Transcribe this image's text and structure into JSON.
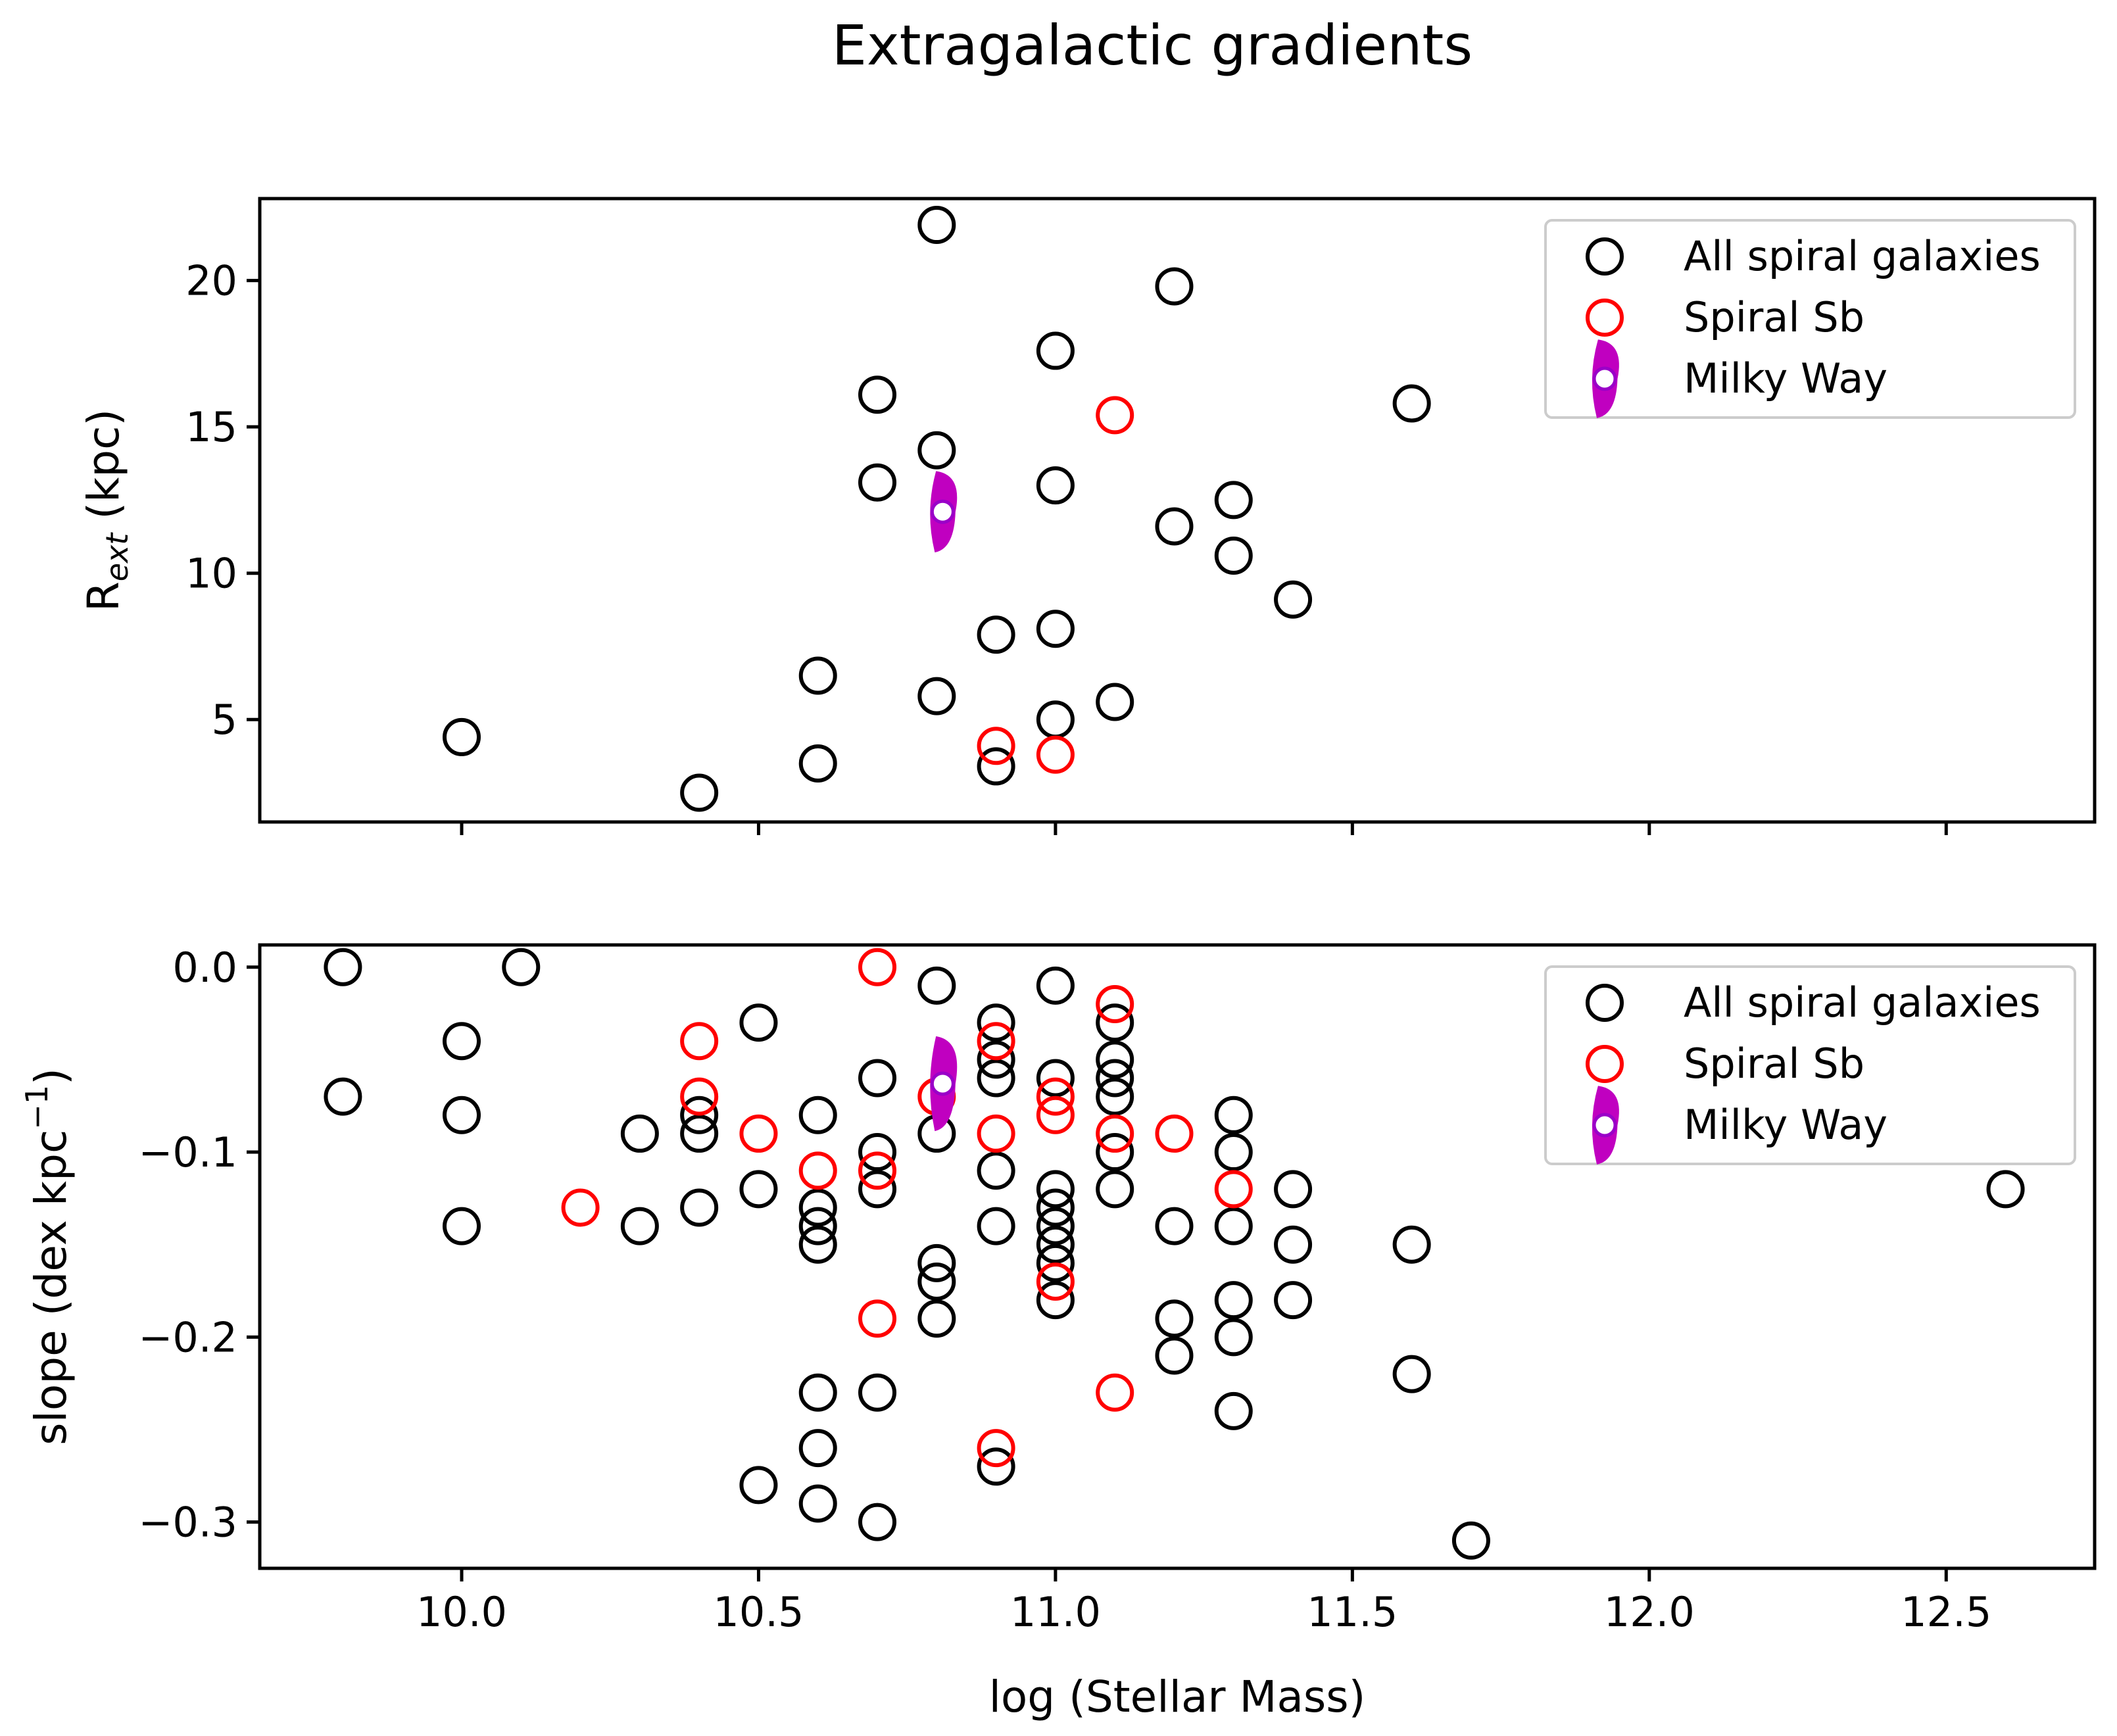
{
  "title": "Extragalactic gradients",
  "colors": {
    "all": "#000000",
    "sb": "#ff0000",
    "mw_fill": "#c000c0",
    "mw_edge": "#9a00c8"
  },
  "chart_data": [
    {
      "type": "scatter",
      "panel": "top",
      "xlabel": "log (Stellar Mass)",
      "ylabel_main": "R",
      "ylabel_sub": "ext",
      "ylabel_unit": " (kpc)",
      "xlim": [
        9.66,
        12.75
      ],
      "ylim": [
        1.5,
        22.8
      ],
      "xticks": [
        10.0,
        10.5,
        11.0,
        11.5,
        12.0,
        12.5
      ],
      "yticks": [
        5,
        10,
        15,
        20
      ],
      "ytick_labels": [
        "5",
        "10",
        "15",
        "20"
      ],
      "show_xtick_labels": false,
      "legend_position": "top-right",
      "legend": [
        "All spiral galaxies",
        "Spiral Sb",
        "Milky Way"
      ],
      "series": [
        {
          "name": "All spiral galaxies",
          "points": [
            [
              10.0,
              4.4
            ],
            [
              10.4,
              2.5
            ],
            [
              10.6,
              6.5
            ],
            [
              10.6,
              3.5
            ],
            [
              10.7,
              16.1
            ],
            [
              10.7,
              13.1
            ],
            [
              10.8,
              21.9
            ],
            [
              10.8,
              14.2
            ],
            [
              10.8,
              5.8
            ],
            [
              10.9,
              7.9
            ],
            [
              10.9,
              3.4
            ],
            [
              11.0,
              17.6
            ],
            [
              11.0,
              13.0
            ],
            [
              11.0,
              8.1
            ],
            [
              11.0,
              5.0
            ],
            [
              11.1,
              5.6
            ],
            [
              11.2,
              19.8
            ],
            [
              11.2,
              11.6
            ],
            [
              11.3,
              12.5
            ],
            [
              11.3,
              10.6
            ],
            [
              11.4,
              9.1
            ],
            [
              11.6,
              15.8
            ]
          ]
        },
        {
          "name": "Spiral Sb",
          "points": [
            [
              10.9,
              4.1
            ],
            [
              11.0,
              3.8
            ],
            [
              11.1,
              15.4
            ]
          ]
        },
        {
          "name": "Milky Way",
          "points": [
            [
              10.81,
              12.1
            ]
          ],
          "y_range": [
            [
              10.9,
              13.6
            ]
          ]
        }
      ]
    },
    {
      "type": "scatter",
      "panel": "bottom",
      "xlabel": "log (Stellar Mass)",
      "ylabel_main": "slope (dex kpc",
      "ylabel_sup": "−1",
      "ylabel_end": ")",
      "xlim": [
        9.66,
        12.75
      ],
      "ylim": [
        -0.325,
        0.012
      ],
      "xticks": [
        10.0,
        10.5,
        11.0,
        11.5,
        12.0,
        12.5
      ],
      "xtick_labels": [
        "10.0",
        "10.5",
        "11.0",
        "11.5",
        "12.0",
        "12.5"
      ],
      "yticks": [
        0.0,
        -0.1,
        -0.2,
        -0.3
      ],
      "ytick_labels": [
        "0.0",
        "−0.1",
        "−0.2",
        "−0.3"
      ],
      "show_xtick_labels": true,
      "legend_position": "top-right",
      "legend": [
        "All spiral galaxies",
        "Spiral Sb",
        "Milky Way"
      ],
      "series": [
        {
          "name": "All spiral galaxies",
          "points": [
            [
              9.8,
              0.0
            ],
            [
              9.8,
              -0.07
            ],
            [
              10.0,
              -0.04
            ],
            [
              10.0,
              -0.08
            ],
            [
              10.0,
              -0.14
            ],
            [
              10.1,
              0.0
            ],
            [
              10.3,
              -0.09
            ],
            [
              10.3,
              -0.14
            ],
            [
              10.4,
              -0.08
            ],
            [
              10.4,
              -0.09
            ],
            [
              10.4,
              -0.13
            ],
            [
              10.5,
              -0.03
            ],
            [
              10.5,
              -0.12
            ],
            [
              10.5,
              -0.28
            ],
            [
              10.6,
              -0.08
            ],
            [
              10.6,
              -0.13
            ],
            [
              10.6,
              -0.14
            ],
            [
              10.6,
              -0.15
            ],
            [
              10.6,
              -0.23
            ],
            [
              10.6,
              -0.26
            ],
            [
              10.6,
              -0.29
            ],
            [
              10.7,
              -0.06
            ],
            [
              10.7,
              -0.1
            ],
            [
              10.7,
              -0.12
            ],
            [
              10.7,
              -0.23
            ],
            [
              10.7,
              -0.3
            ],
            [
              10.8,
              -0.01
            ],
            [
              10.8,
              -0.09
            ],
            [
              10.8,
              -0.16
            ],
            [
              10.8,
              -0.17
            ],
            [
              10.8,
              -0.19
            ],
            [
              10.9,
              -0.03
            ],
            [
              10.9,
              -0.05
            ],
            [
              10.9,
              -0.06
            ],
            [
              10.9,
              -0.11
            ],
            [
              10.9,
              -0.14
            ],
            [
              10.9,
              -0.27
            ],
            [
              11.0,
              -0.01
            ],
            [
              11.0,
              -0.06
            ],
            [
              11.0,
              -0.12
            ],
            [
              11.0,
              -0.13
            ],
            [
              11.0,
              -0.14
            ],
            [
              11.0,
              -0.15
            ],
            [
              11.0,
              -0.16
            ],
            [
              11.0,
              -0.18
            ],
            [
              11.1,
              -0.03
            ],
            [
              11.1,
              -0.05
            ],
            [
              11.1,
              -0.06
            ],
            [
              11.1,
              -0.07
            ],
            [
              11.1,
              -0.1
            ],
            [
              11.1,
              -0.12
            ],
            [
              11.2,
              -0.14
            ],
            [
              11.2,
              -0.19
            ],
            [
              11.2,
              -0.21
            ],
            [
              11.3,
              -0.08
            ],
            [
              11.3,
              -0.1
            ],
            [
              11.3,
              -0.14
            ],
            [
              11.3,
              -0.18
            ],
            [
              11.3,
              -0.2
            ],
            [
              11.3,
              -0.24
            ],
            [
              11.4,
              -0.12
            ],
            [
              11.4,
              -0.15
            ],
            [
              11.4,
              -0.18
            ],
            [
              11.6,
              -0.15
            ],
            [
              11.6,
              -0.22
            ],
            [
              11.7,
              -0.31
            ],
            [
              12.6,
              -0.12
            ]
          ]
        },
        {
          "name": "Spiral Sb",
          "points": [
            [
              10.2,
              -0.13
            ],
            [
              10.4,
              -0.04
            ],
            [
              10.4,
              -0.07
            ],
            [
              10.5,
              -0.09
            ],
            [
              10.6,
              -0.11
            ],
            [
              10.7,
              0.0
            ],
            [
              10.7,
              -0.11
            ],
            [
              10.7,
              -0.19
            ],
            [
              10.8,
              -0.07
            ],
            [
              10.9,
              -0.04
            ],
            [
              10.9,
              -0.09
            ],
            [
              10.9,
              -0.26
            ],
            [
              11.0,
              -0.07
            ],
            [
              11.0,
              -0.08
            ],
            [
              11.0,
              -0.17
            ],
            [
              11.1,
              -0.02
            ],
            [
              11.1,
              -0.09
            ],
            [
              11.1,
              -0.23
            ],
            [
              11.2,
              -0.09
            ],
            [
              11.3,
              -0.12
            ]
          ]
        },
        {
          "name": "Milky Way",
          "points": [
            [
              10.81,
              -0.063
            ]
          ],
          "y_range": [
            [
              -0.09,
              -0.04
            ]
          ]
        }
      ]
    }
  ]
}
